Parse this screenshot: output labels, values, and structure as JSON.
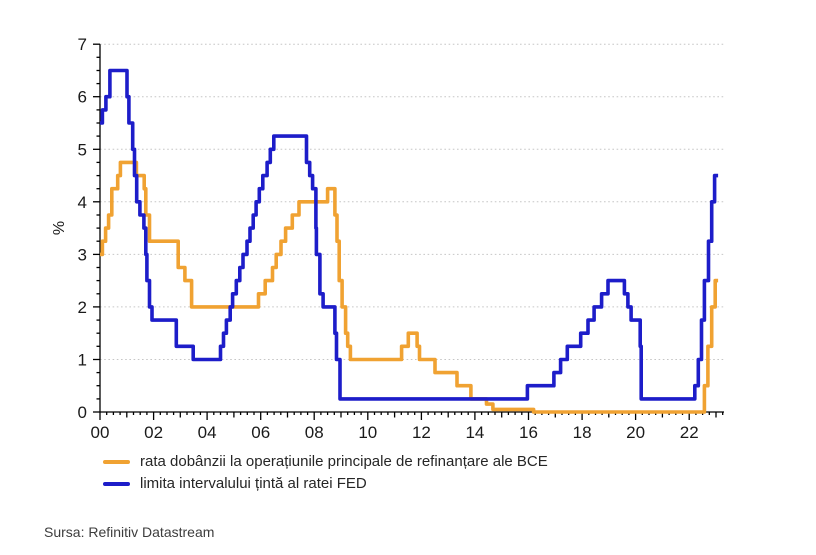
{
  "source_note": "Sursa: Refinitiv Datastream",
  "colors": {
    "bce_line": "#F0A232",
    "fed_line": "#1D1DC9",
    "grid": "#C6C6C6",
    "axis": "#000000",
    "tick_text": "#1A1A1A"
  },
  "chart_data": {
    "type": "line",
    "step": true,
    "title": "",
    "xlabel": "",
    "ylabel": "%",
    "xlim": [
      2000,
      2023.3
    ],
    "ylim": [
      0,
      7
    ],
    "grid": true,
    "legend_position": "bottom-left",
    "x_tick_years": [
      2000,
      2002,
      2004,
      2006,
      2008,
      2010,
      2012,
      2014,
      2016,
      2018,
      2020,
      2022
    ],
    "x_tick_labels": [
      "00",
      "02",
      "04",
      "06",
      "08",
      "10",
      "12",
      "14",
      "16",
      "18",
      "20",
      "22"
    ],
    "y_tick_values": [
      0,
      1,
      2,
      3,
      4,
      5,
      6,
      7
    ],
    "y_tick_labels": [
      "0",
      "1",
      "2",
      "3",
      "4",
      "5",
      "6",
      "7"
    ],
    "series": [
      {
        "name": "rata dobânzii la operațiunile principale de refinanțare ale BCE",
        "color": "#F0A232",
        "points": [
          [
            2000.0,
            3.0
          ],
          [
            2000.09,
            3.25
          ],
          [
            2000.21,
            3.5
          ],
          [
            2000.32,
            3.75
          ],
          [
            2000.44,
            4.25
          ],
          [
            2000.66,
            4.5
          ],
          [
            2000.76,
            4.75
          ],
          [
            2001.36,
            4.5
          ],
          [
            2001.65,
            4.25
          ],
          [
            2001.71,
            3.75
          ],
          [
            2001.85,
            3.25
          ],
          [
            2002.92,
            2.75
          ],
          [
            2003.17,
            2.5
          ],
          [
            2003.42,
            2.0
          ],
          [
            2005.92,
            2.25
          ],
          [
            2006.17,
            2.5
          ],
          [
            2006.44,
            2.75
          ],
          [
            2006.58,
            3.0
          ],
          [
            2006.76,
            3.25
          ],
          [
            2006.93,
            3.5
          ],
          [
            2007.18,
            3.75
          ],
          [
            2007.43,
            4.0
          ],
          [
            2008.5,
            4.25
          ],
          [
            2008.77,
            3.75
          ],
          [
            2008.85,
            3.25
          ],
          [
            2008.93,
            2.5
          ],
          [
            2009.04,
            2.0
          ],
          [
            2009.17,
            1.5
          ],
          [
            2009.25,
            1.25
          ],
          [
            2009.35,
            1.0
          ],
          [
            2011.26,
            1.25
          ],
          [
            2011.51,
            1.5
          ],
          [
            2011.84,
            1.25
          ],
          [
            2011.93,
            1.0
          ],
          [
            2012.51,
            0.75
          ],
          [
            2013.33,
            0.5
          ],
          [
            2013.85,
            0.25
          ],
          [
            2014.43,
            0.15
          ],
          [
            2014.67,
            0.05
          ],
          [
            2016.19,
            0.0
          ],
          [
            2022.57,
            0.5
          ],
          [
            2022.7,
            1.25
          ],
          [
            2022.84,
            2.0
          ],
          [
            2022.97,
            2.5
          ],
          [
            2023.08,
            2.5
          ]
        ]
      },
      {
        "name": "limita intervalului țintă al ratei FED",
        "color": "#1D1DC9",
        "points": [
          [
            2000.0,
            5.5
          ],
          [
            2000.09,
            5.75
          ],
          [
            2000.22,
            6.0
          ],
          [
            2000.37,
            6.5
          ],
          [
            2001.01,
            6.0
          ],
          [
            2001.08,
            5.5
          ],
          [
            2001.22,
            5.0
          ],
          [
            2001.29,
            4.5
          ],
          [
            2001.37,
            4.0
          ],
          [
            2001.49,
            3.75
          ],
          [
            2001.64,
            3.5
          ],
          [
            2001.71,
            3.0
          ],
          [
            2001.75,
            2.5
          ],
          [
            2001.85,
            2.0
          ],
          [
            2001.94,
            1.75
          ],
          [
            2002.85,
            1.25
          ],
          [
            2003.48,
            1.0
          ],
          [
            2004.5,
            1.25
          ],
          [
            2004.61,
            1.5
          ],
          [
            2004.72,
            1.75
          ],
          [
            2004.86,
            2.0
          ],
          [
            2004.95,
            2.25
          ],
          [
            2005.09,
            2.5
          ],
          [
            2005.22,
            2.75
          ],
          [
            2005.34,
            3.0
          ],
          [
            2005.49,
            3.25
          ],
          [
            2005.6,
            3.5
          ],
          [
            2005.72,
            3.75
          ],
          [
            2005.83,
            4.0
          ],
          [
            2005.95,
            4.25
          ],
          [
            2006.08,
            4.5
          ],
          [
            2006.24,
            4.75
          ],
          [
            2006.36,
            5.0
          ],
          [
            2006.49,
            5.25
          ],
          [
            2007.71,
            4.75
          ],
          [
            2007.83,
            4.5
          ],
          [
            2007.94,
            4.25
          ],
          [
            2008.06,
            3.5
          ],
          [
            2008.08,
            3.0
          ],
          [
            2008.21,
            2.25
          ],
          [
            2008.33,
            2.0
          ],
          [
            2008.77,
            1.5
          ],
          [
            2008.83,
            1.0
          ],
          [
            2008.96,
            0.25
          ],
          [
            2015.96,
            0.5
          ],
          [
            2016.95,
            0.75
          ],
          [
            2017.2,
            1.0
          ],
          [
            2017.45,
            1.25
          ],
          [
            2017.95,
            1.5
          ],
          [
            2018.22,
            1.75
          ],
          [
            2018.45,
            2.0
          ],
          [
            2018.73,
            2.25
          ],
          [
            2018.97,
            2.5
          ],
          [
            2019.58,
            2.25
          ],
          [
            2019.71,
            2.0
          ],
          [
            2019.83,
            1.75
          ],
          [
            2020.17,
            1.25
          ],
          [
            2020.21,
            0.25
          ],
          [
            2022.21,
            0.5
          ],
          [
            2022.34,
            1.0
          ],
          [
            2022.46,
            1.75
          ],
          [
            2022.57,
            2.5
          ],
          [
            2022.72,
            3.25
          ],
          [
            2022.84,
            4.0
          ],
          [
            2022.95,
            4.5
          ],
          [
            2023.08,
            4.5
          ]
        ]
      }
    ]
  }
}
